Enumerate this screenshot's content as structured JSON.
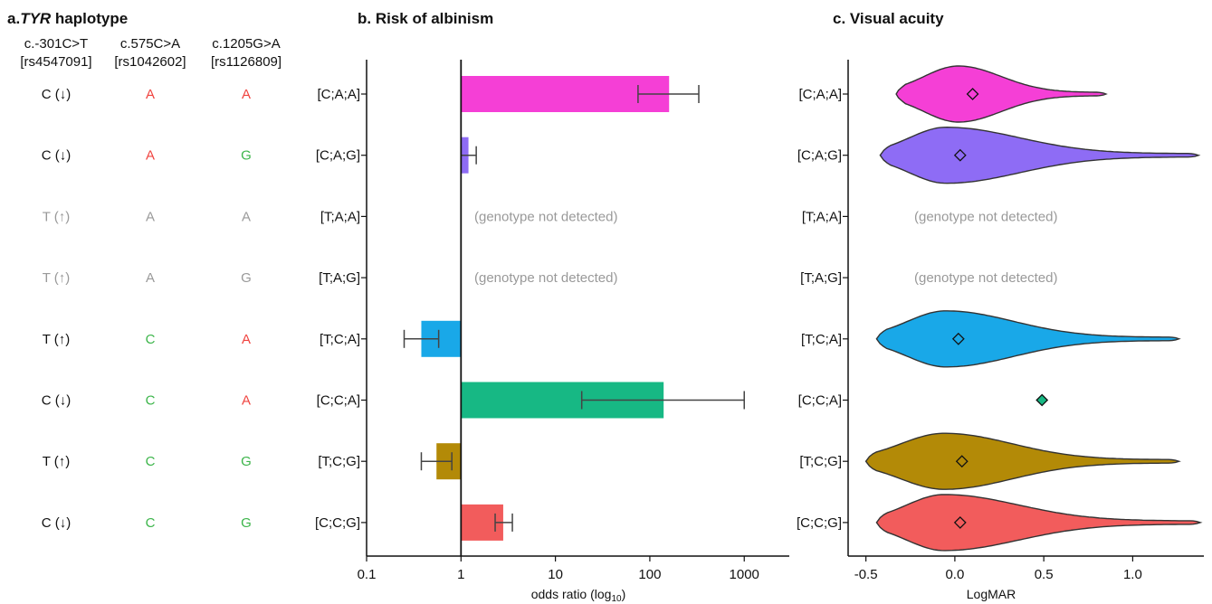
{
  "panel_a": {
    "title_prefix": "a.",
    "title_italic": "TYR",
    "title_rest": " haplotype",
    "columns": [
      {
        "line1": "c.-301C>T",
        "line2": "[rs4547091]"
      },
      {
        "line1": "c.575C>A",
        "line2": "[rs1042602]"
      },
      {
        "line1": "c.1205G>A",
        "line2": "[rs1126809]"
      }
    ],
    "rows": [
      [
        {
          "text": "C (↓)",
          "status": "normal"
        },
        {
          "text": "A",
          "status": "risk"
        },
        {
          "text": "A",
          "status": "risk"
        }
      ],
      [
        {
          "text": "C (↓)",
          "status": "normal"
        },
        {
          "text": "A",
          "status": "risk"
        },
        {
          "text": "G",
          "status": "protective"
        }
      ],
      [
        {
          "text": "T (↑)",
          "status": "absent"
        },
        {
          "text": "A",
          "status": "absent"
        },
        {
          "text": "A",
          "status": "absent"
        }
      ],
      [
        {
          "text": "T (↑)",
          "status": "absent"
        },
        {
          "text": "A",
          "status": "absent"
        },
        {
          "text": "G",
          "status": "absent"
        }
      ],
      [
        {
          "text": "T (↑)",
          "status": "normal"
        },
        {
          "text": "C",
          "status": "protective"
        },
        {
          "text": "A",
          "status": "risk"
        }
      ],
      [
        {
          "text": "C (↓)",
          "status": "normal"
        },
        {
          "text": "C",
          "status": "protective"
        },
        {
          "text": "A",
          "status": "risk"
        }
      ],
      [
        {
          "text": "T (↑)",
          "status": "normal"
        },
        {
          "text": "C",
          "status": "protective"
        },
        {
          "text": "G",
          "status": "protective"
        }
      ],
      [
        {
          "text": "C (↓)",
          "status": "normal"
        },
        {
          "text": "C",
          "status": "protective"
        },
        {
          "text": "G",
          "status": "protective"
        }
      ]
    ],
    "colors": {
      "normal": "#111111",
      "risk": "#f0433f",
      "protective": "#3cb54a",
      "absent": "#999999"
    }
  },
  "chart_data": [
    {
      "type": "bar",
      "title": "b. Risk of albinism",
      "xlabel": "odds ratio (log",
      "xlabel_sub": "10",
      "xlabel_end": ")",
      "xscale": "log",
      "xlim": [
        0.1,
        3000
      ],
      "xticks": [
        "0.1",
        "1",
        "10",
        "100",
        "1000"
      ],
      "reference_line": 1,
      "categories": [
        "[C;A;A]",
        "[C;A;G]",
        "[T;A;A]",
        "[T;A;G]",
        "[T;C;A]",
        "[C;C;A]",
        "[T;C;G]",
        "[C;C;G]"
      ],
      "values": [
        160,
        1.2,
        null,
        null,
        0.38,
        140,
        0.55,
        2.8
      ],
      "ci_low": [
        75,
        1.0,
        null,
        null,
        0.25,
        19,
        0.38,
        2.3
      ],
      "ci_high": [
        330,
        1.45,
        null,
        null,
        0.58,
        1000,
        0.8,
        3.5
      ],
      "not_detected_label": "(genotype not detected)",
      "colors": [
        "#f53fd6",
        "#8e6cf5",
        null,
        null,
        "#19a8e8",
        "#17b884",
        "#b38a07",
        "#f25c5c"
      ]
    },
    {
      "type": "violin",
      "title": "c. Visual acuity",
      "xlabel": "LogMAR",
      "xlim": [
        -0.6,
        1.4
      ],
      "xticks": [
        "-0.5",
        "0.0",
        "0.5",
        "1.0"
      ],
      "categories": [
        "[C;A;A]",
        "[C;A;G]",
        "[T;A;A]",
        "[T;A;G]",
        "[T;C;A]",
        "[C;C;A]",
        "[T;C;G]",
        "[C;C;G]"
      ],
      "means": [
        0.1,
        0.03,
        null,
        null,
        0.02,
        0.49,
        0.04,
        0.03
      ],
      "modes": [
        0.02,
        -0.05,
        null,
        null,
        -0.05,
        null,
        -0.06,
        -0.06
      ],
      "ranges": [
        [
          -0.33,
          0.85
        ],
        [
          -0.42,
          1.37
        ],
        null,
        null,
        [
          -0.44,
          1.26
        ],
        null,
        [
          -0.5,
          1.26
        ],
        [
          -0.44,
          1.38
        ]
      ],
      "not_detected_label": "(genotype not detected)",
      "colors": [
        "#f53fd6",
        "#8e6cf5",
        null,
        null,
        "#19a8e8",
        "#17b884",
        "#b38a07",
        "#f25c5c"
      ]
    }
  ]
}
